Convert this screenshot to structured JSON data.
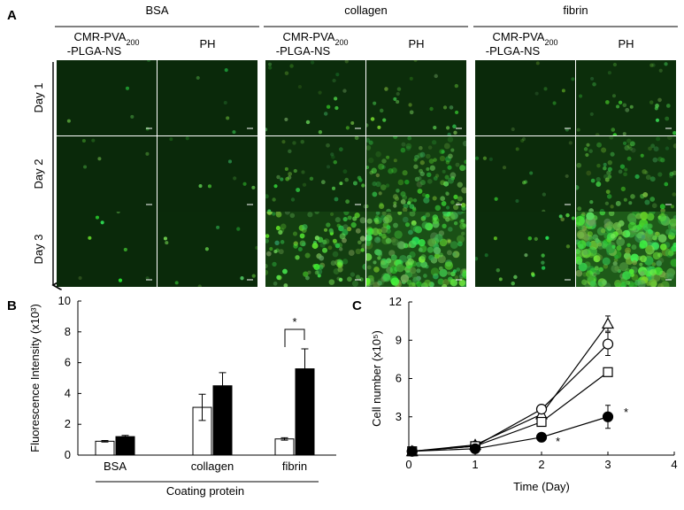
{
  "panel_a": {
    "label": "A",
    "groups": [
      {
        "name": "BSA",
        "columns": [
          {
            "line1": "CMR-PVA",
            "sub": "200",
            "line2": "-PLGA-NS"
          },
          {
            "line1": "PH"
          }
        ]
      },
      {
        "name": "collagen",
        "columns": [
          {
            "line1": "CMR-PVA",
            "sub": "200",
            "line2": "-PLGA-NS"
          },
          {
            "line1": "PH"
          }
        ]
      },
      {
        "name": "fibrin",
        "columns": [
          {
            "line1": "CMR-PVA",
            "sub": "200",
            "line2": "-PLGA-NS"
          },
          {
            "line1": "PH"
          }
        ]
      }
    ],
    "rows": [
      "Day 1",
      "Day 2",
      "Day 3"
    ]
  },
  "chart_data": [
    {
      "type": "bar",
      "panel_label": "B",
      "y_label": "Fluorescence Intensity (x10³)",
      "x_label": "Coating protein",
      "categories": [
        "BSA",
        "collagen",
        "fibrin"
      ],
      "series": [
        {
          "color": "#ffffff",
          "values": [
            0.9,
            3.1,
            1.05
          ],
          "errors": [
            0.05,
            0.85,
            0.08
          ]
        },
        {
          "color": "#000000",
          "values": [
            1.2,
            4.5,
            5.6
          ],
          "errors": [
            0.08,
            0.85,
            1.3
          ]
        }
      ],
      "ylim": [
        0,
        10
      ],
      "yticks": [
        0,
        2,
        4,
        6,
        8,
        10
      ],
      "annotations": [
        "*"
      ]
    },
    {
      "type": "line",
      "panel_label": "C",
      "y_label": "Cell number (x10⁵)",
      "x_label": "Time (Day)",
      "x": [
        0.05,
        1,
        2,
        3
      ],
      "series": [
        {
          "marker": "triangle",
          "color": "#ffffff",
          "values": [
            0.3,
            0.8,
            3.2,
            10.3
          ],
          "errors": [
            null,
            null,
            null,
            0.6
          ]
        },
        {
          "marker": "circle",
          "color": "#ffffff",
          "values": [
            0.3,
            0.7,
            3.6,
            8.7
          ],
          "errors": [
            null,
            null,
            null,
            0.9
          ]
        },
        {
          "marker": "square",
          "color": "#ffffff",
          "values": [
            0.3,
            0.7,
            2.6,
            6.5
          ],
          "errors": [
            null,
            null,
            null,
            null
          ]
        },
        {
          "marker": "circle",
          "color": "#000000",
          "values": [
            0.3,
            0.5,
            1.4,
            3.0
          ],
          "errors": [
            null,
            null,
            null,
            0.9
          ]
        }
      ],
      "xlim": [
        0,
        4
      ],
      "xticks": [
        0,
        1,
        2,
        3,
        4
      ],
      "ylim": [
        0,
        12
      ],
      "yticks": [
        3,
        6,
        9,
        12
      ],
      "annotations": [
        "*",
        "*"
      ]
    }
  ]
}
